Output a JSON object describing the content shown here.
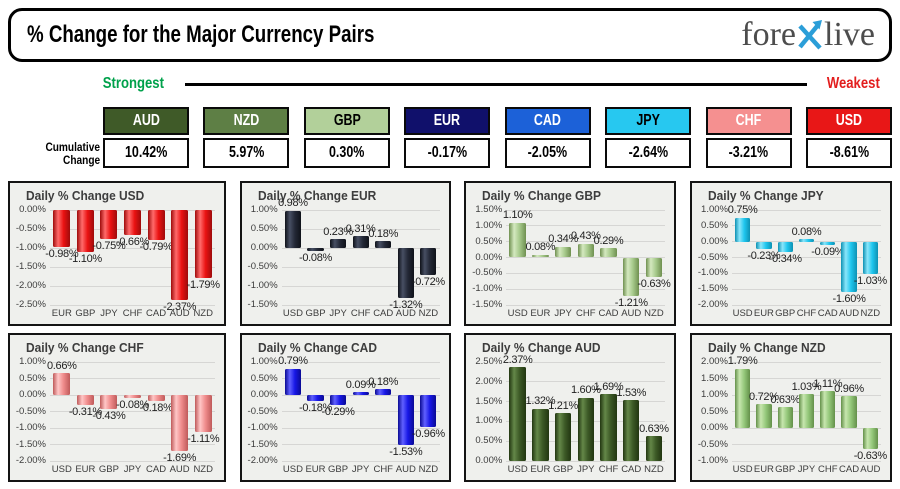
{
  "header": {
    "title": "% Change for the Major Currency Pairs",
    "logo": {
      "part1": "fore",
      "part2": "live",
      "x_color": "#2b9ed8",
      "text_color": "#4d4d4d"
    }
  },
  "scale": {
    "strongest": "Strongest",
    "weakest": "Weakest",
    "strongest_color": "#00a14b",
    "weakest_color": "#e31e1e"
  },
  "cumulative": {
    "label_line1": "Cumulative",
    "label_line2": "Change",
    "currencies": [
      {
        "code": "AUD",
        "value": "10.42%",
        "color": "#3f5a28",
        "text_color": "#ffffff"
      },
      {
        "code": "NZD",
        "value": "5.97%",
        "color": "#5e7f45",
        "text_color": "#ffffff"
      },
      {
        "code": "GBP",
        "value": "0.30%",
        "color": "#b2d09a",
        "text_color": "#000000"
      },
      {
        "code": "EUR",
        "value": "-0.17%",
        "color": "#10106b",
        "text_color": "#ffffff"
      },
      {
        "code": "CAD",
        "value": "-2.05%",
        "color": "#1c61d8",
        "text_color": "#ffffff"
      },
      {
        "code": "JPY",
        "value": "-2.64%",
        "color": "#27c8f0",
        "text_color": "#000000"
      },
      {
        "code": "CHF",
        "value": "-3.21%",
        "color": "#f59090",
        "text_color": "#ffffff"
      },
      {
        "code": "USD",
        "value": "-8.61%",
        "color": "#e81717",
        "text_color": "#ffffff"
      }
    ]
  },
  "chart_data": [
    {
      "type": "bar",
      "id": "usd",
      "title": "Daily % Change USD",
      "categories": [
        "EUR",
        "GBP",
        "JPY",
        "CHF",
        "CAD",
        "AUD",
        "NZD"
      ],
      "values": [
        -0.98,
        -1.1,
        -0.75,
        -0.66,
        -0.79,
        -2.37,
        -1.79
      ],
      "ylim": [
        -2.5,
        0
      ],
      "yticks": [
        0,
        -0.5,
        -1,
        -1.5,
        -2,
        -2.5
      ],
      "bar_color": "#ea1212",
      "bar_light": "#ff6a6a",
      "bar_dark": "#9e0b0b",
      "grid": true,
      "legend": "none"
    },
    {
      "type": "bar",
      "id": "eur",
      "title": "Daily % Change EUR",
      "categories": [
        "USD",
        "GBP",
        "JPY",
        "CHF",
        "CAD",
        "AUD",
        "NZD"
      ],
      "values": [
        0.98,
        -0.08,
        0.23,
        0.31,
        0.18,
        -1.32,
        -0.72
      ],
      "ylim": [
        -1.5,
        1
      ],
      "yticks": [
        1,
        0.5,
        0,
        -0.5,
        -1,
        -1.5
      ],
      "bar_color": "#232836",
      "bar_light": "#474f63",
      "bar_dark": "#0f1219",
      "grid": true,
      "legend": "none"
    },
    {
      "type": "bar",
      "id": "gbp",
      "title": "Daily % Change GBP",
      "categories": [
        "USD",
        "EUR",
        "JPY",
        "CHF",
        "CAD",
        "AUD",
        "NZD"
      ],
      "values": [
        1.1,
        0.08,
        0.34,
        0.43,
        0.29,
        -1.21,
        -0.63
      ],
      "ylim": [
        -1.5,
        1.5
      ],
      "yticks": [
        1.5,
        1,
        0.5,
        0,
        -0.5,
        -1,
        -1.5
      ],
      "bar_color": "#a6c98b",
      "bar_light": "#d4e9bf",
      "bar_dark": "#6f9050",
      "grid": true,
      "legend": "none"
    },
    {
      "type": "bar",
      "id": "jpy",
      "title": "Daily % Change JPY",
      "categories": [
        "USD",
        "EUR",
        "GBP",
        "CHF",
        "CAD",
        "AUD",
        "NZD"
      ],
      "values": [
        0.75,
        -0.23,
        -0.34,
        0.08,
        -0.09,
        -1.6,
        -1.03
      ],
      "ylim": [
        -2,
        1
      ],
      "yticks": [
        1,
        0.5,
        0,
        -0.5,
        -1,
        -1.5,
        -2
      ],
      "bar_color": "#1fc6ee",
      "bar_light": "#8ae6fb",
      "bar_dark": "#0d91b3",
      "grid": true,
      "legend": "none"
    },
    {
      "type": "bar",
      "id": "chf",
      "title": "Daily % Change CHF",
      "categories": [
        "USD",
        "EUR",
        "GBP",
        "JPY",
        "CAD",
        "AUD",
        "NZD"
      ],
      "values": [
        0.66,
        -0.31,
        -0.43,
        -0.08,
        -0.18,
        -1.69,
        -1.11
      ],
      "ylim": [
        -2,
        1
      ],
      "yticks": [
        1,
        0.5,
        0,
        -0.5,
        -1,
        -1.5,
        -2
      ],
      "bar_color": "#ef8b8b",
      "bar_light": "#ffc6c6",
      "bar_dark": "#bf5a5a",
      "grid": true,
      "legend": "none"
    },
    {
      "type": "bar",
      "id": "cad",
      "title": "Daily % Change CAD",
      "categories": [
        "USD",
        "EUR",
        "GBP",
        "JPY",
        "CHF",
        "AUD",
        "NZD"
      ],
      "values": [
        0.79,
        -0.18,
        -0.29,
        0.09,
        0.18,
        -1.53,
        -0.96
      ],
      "ylim": [
        -2,
        1
      ],
      "yticks": [
        1,
        0.5,
        0,
        -0.5,
        -1,
        -1.5,
        -2
      ],
      "bar_color": "#1717e6",
      "bar_light": "#6060ff",
      "bar_dark": "#0a0a94",
      "grid": true,
      "legend": "none"
    },
    {
      "type": "bar",
      "id": "aud",
      "title": "Daily % Change AUD",
      "categories": [
        "USD",
        "EUR",
        "GBP",
        "JPY",
        "CHF",
        "CAD",
        "NZD"
      ],
      "values": [
        2.37,
        1.32,
        1.21,
        1.6,
        1.69,
        1.53,
        0.63
      ],
      "ylim": [
        0,
        2.5
      ],
      "yticks": [
        2.5,
        2,
        1.5,
        1,
        0.5,
        0
      ],
      "bar_color": "#3c5926",
      "bar_light": "#648748",
      "bar_dark": "#223611",
      "grid": true,
      "legend": "none"
    },
    {
      "type": "bar",
      "id": "nzd",
      "title": "Daily % Change NZD",
      "categories": [
        "USD",
        "EUR",
        "GBP",
        "JPY",
        "CHF",
        "CAD",
        "AUD"
      ],
      "values": [
        1.79,
        0.72,
        0.63,
        1.03,
        1.11,
        0.96,
        -0.63
      ],
      "ylim": [
        -1,
        2
      ],
      "yticks": [
        2,
        1.5,
        1,
        0.5,
        0,
        -0.5,
        -1
      ],
      "bar_color": "#93c779",
      "bar_light": "#c7e6ae",
      "bar_dark": "#64904a",
      "grid": true,
      "legend": "none"
    }
  ]
}
